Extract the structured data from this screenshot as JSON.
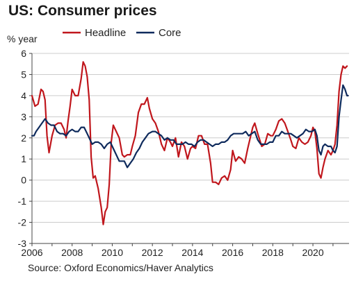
{
  "chart_data": {
    "type": "line",
    "title": "US: Consumer prices",
    "ylabel": "% year",
    "source": "Source: Oxford Economics/Haver Analytics",
    "xlim": [
      2006,
      2021.8
    ],
    "ylim": [
      -3,
      6
    ],
    "y_ticks": [
      -3,
      -2,
      -1,
      0,
      1,
      2,
      3,
      4,
      5,
      6
    ],
    "x_ticks": [
      2006,
      2008,
      2010,
      2012,
      2014,
      2016,
      2018,
      2020
    ],
    "grid": "horizontal",
    "legend_position": "top",
    "series": [
      {
        "name": "Headline",
        "color": "#c0161c",
        "points": [
          [
            2006.0,
            4.0
          ],
          [
            2006.15,
            3.5
          ],
          [
            2006.3,
            3.6
          ],
          [
            2006.45,
            4.3
          ],
          [
            2006.55,
            4.2
          ],
          [
            2006.65,
            3.8
          ],
          [
            2006.75,
            2.1
          ],
          [
            2006.85,
            1.3
          ],
          [
            2007.0,
            2.1
          ],
          [
            2007.15,
            2.6
          ],
          [
            2007.3,
            2.7
          ],
          [
            2007.45,
            2.7
          ],
          [
            2007.6,
            2.4
          ],
          [
            2007.7,
            2.0
          ],
          [
            2007.8,
            2.8
          ],
          [
            2007.9,
            3.5
          ],
          [
            2008.0,
            4.3
          ],
          [
            2008.15,
            4.0
          ],
          [
            2008.3,
            4.0
          ],
          [
            2008.45,
            4.8
          ],
          [
            2008.55,
            5.6
          ],
          [
            2008.65,
            5.4
          ],
          [
            2008.75,
            4.9
          ],
          [
            2008.85,
            3.8
          ],
          [
            2008.95,
            1.1
          ],
          [
            2009.05,
            0.1
          ],
          [
            2009.15,
            0.2
          ],
          [
            2009.3,
            -0.4
          ],
          [
            2009.45,
            -1.3
          ],
          [
            2009.55,
            -2.1
          ],
          [
            2009.65,
            -1.5
          ],
          [
            2009.75,
            -1.3
          ],
          [
            2009.85,
            -0.2
          ],
          [
            2009.95,
            1.8
          ],
          [
            2010.05,
            2.6
          ],
          [
            2010.2,
            2.3
          ],
          [
            2010.35,
            2.0
          ],
          [
            2010.5,
            1.2
          ],
          [
            2010.6,
            1.1
          ],
          [
            2010.75,
            1.2
          ],
          [
            2010.9,
            1.2
          ],
          [
            2011.0,
            1.6
          ],
          [
            2011.15,
            2.1
          ],
          [
            2011.3,
            3.2
          ],
          [
            2011.45,
            3.6
          ],
          [
            2011.6,
            3.6
          ],
          [
            2011.75,
            3.9
          ],
          [
            2011.85,
            3.4
          ],
          [
            2012.0,
            2.9
          ],
          [
            2012.15,
            2.7
          ],
          [
            2012.3,
            2.3
          ],
          [
            2012.45,
            1.7
          ],
          [
            2012.6,
            1.4
          ],
          [
            2012.75,
            2.0
          ],
          [
            2012.9,
            1.8
          ],
          [
            2013.0,
            1.6
          ],
          [
            2013.15,
            2.0
          ],
          [
            2013.3,
            1.1
          ],
          [
            2013.45,
            1.8
          ],
          [
            2013.6,
            1.6
          ],
          [
            2013.75,
            1.0
          ],
          [
            2013.9,
            1.5
          ],
          [
            2014.0,
            1.6
          ],
          [
            2014.15,
            1.5
          ],
          [
            2014.3,
            2.1
          ],
          [
            2014.45,
            2.1
          ],
          [
            2014.6,
            1.7
          ],
          [
            2014.75,
            1.7
          ],
          [
            2014.9,
            0.8
          ],
          [
            2015.0,
            -0.1
          ],
          [
            2015.15,
            -0.1
          ],
          [
            2015.3,
            -0.2
          ],
          [
            2015.45,
            0.1
          ],
          [
            2015.6,
            0.2
          ],
          [
            2015.75,
            0.0
          ],
          [
            2015.9,
            0.5
          ],
          [
            2016.0,
            1.4
          ],
          [
            2016.15,
            0.9
          ],
          [
            2016.3,
            1.1
          ],
          [
            2016.45,
            1.0
          ],
          [
            2016.6,
            0.8
          ],
          [
            2016.75,
            1.5
          ],
          [
            2016.9,
            2.1
          ],
          [
            2017.0,
            2.5
          ],
          [
            2017.1,
            2.7
          ],
          [
            2017.25,
            2.2
          ],
          [
            2017.45,
            1.6
          ],
          [
            2017.6,
            1.7
          ],
          [
            2017.75,
            2.2
          ],
          [
            2017.9,
            2.1
          ],
          [
            2018.0,
            2.1
          ],
          [
            2018.15,
            2.4
          ],
          [
            2018.3,
            2.8
          ],
          [
            2018.45,
            2.9
          ],
          [
            2018.6,
            2.7
          ],
          [
            2018.75,
            2.3
          ],
          [
            2018.9,
            1.9
          ],
          [
            2019.0,
            1.6
          ],
          [
            2019.15,
            1.5
          ],
          [
            2019.3,
            2.0
          ],
          [
            2019.45,
            1.8
          ],
          [
            2019.6,
            1.7
          ],
          [
            2019.75,
            1.8
          ],
          [
            2019.9,
            2.1
          ],
          [
            2020.0,
            2.5
          ],
          [
            2020.1,
            2.3
          ],
          [
            2020.2,
            1.5
          ],
          [
            2020.3,
            0.3
          ],
          [
            2020.4,
            0.1
          ],
          [
            2020.5,
            0.6
          ],
          [
            2020.6,
            1.0
          ],
          [
            2020.75,
            1.4
          ],
          [
            2020.9,
            1.2
          ],
          [
            2021.0,
            1.4
          ],
          [
            2021.1,
            1.7
          ],
          [
            2021.2,
            2.6
          ],
          [
            2021.3,
            4.2
          ],
          [
            2021.4,
            5.0
          ],
          [
            2021.5,
            5.4
          ],
          [
            2021.6,
            5.3
          ],
          [
            2021.7,
            5.4
          ]
        ]
      },
      {
        "name": "Core",
        "color": "#0e2a5c",
        "points": [
          [
            2006.0,
            2.1
          ],
          [
            2006.1,
            2.1
          ],
          [
            2006.2,
            2.3
          ],
          [
            2006.35,
            2.5
          ],
          [
            2006.5,
            2.7
          ],
          [
            2006.65,
            2.9
          ],
          [
            2006.8,
            2.7
          ],
          [
            2006.95,
            2.6
          ],
          [
            2007.1,
            2.6
          ],
          [
            2007.25,
            2.3
          ],
          [
            2007.4,
            2.2
          ],
          [
            2007.55,
            2.2
          ],
          [
            2007.7,
            2.1
          ],
          [
            2007.85,
            2.3
          ],
          [
            2008.0,
            2.4
          ],
          [
            2008.15,
            2.3
          ],
          [
            2008.3,
            2.3
          ],
          [
            2008.45,
            2.5
          ],
          [
            2008.6,
            2.5
          ],
          [
            2008.75,
            2.2
          ],
          [
            2008.9,
            1.9
          ],
          [
            2009.0,
            1.7
          ],
          [
            2009.15,
            1.8
          ],
          [
            2009.3,
            1.8
          ],
          [
            2009.45,
            1.7
          ],
          [
            2009.6,
            1.5
          ],
          [
            2009.75,
            1.7
          ],
          [
            2009.9,
            1.8
          ],
          [
            2010.05,
            1.5
          ],
          [
            2010.2,
            1.2
          ],
          [
            2010.35,
            0.9
          ],
          [
            2010.5,
            0.9
          ],
          [
            2010.6,
            0.9
          ],
          [
            2010.75,
            0.6
          ],
          [
            2010.9,
            0.8
          ],
          [
            2011.05,
            1.0
          ],
          [
            2011.2,
            1.3
          ],
          [
            2011.35,
            1.5
          ],
          [
            2011.5,
            1.8
          ],
          [
            2011.65,
            2.0
          ],
          [
            2011.8,
            2.2
          ],
          [
            2012.0,
            2.3
          ],
          [
            2012.15,
            2.3
          ],
          [
            2012.3,
            2.2
          ],
          [
            2012.45,
            2.1
          ],
          [
            2012.6,
            1.9
          ],
          [
            2012.75,
            2.0
          ],
          [
            2012.9,
            1.9
          ],
          [
            2013.05,
            1.9
          ],
          [
            2013.2,
            1.7
          ],
          [
            2013.35,
            1.7
          ],
          [
            2013.5,
            1.7
          ],
          [
            2013.65,
            1.8
          ],
          [
            2013.8,
            1.7
          ],
          [
            2013.95,
            1.7
          ],
          [
            2014.1,
            1.6
          ],
          [
            2014.25,
            1.8
          ],
          [
            2014.4,
            1.9
          ],
          [
            2014.55,
            1.9
          ],
          [
            2014.7,
            1.8
          ],
          [
            2014.85,
            1.7
          ],
          [
            2015.0,
            1.6
          ],
          [
            2015.15,
            1.7
          ],
          [
            2015.3,
            1.7
          ],
          [
            2015.45,
            1.8
          ],
          [
            2015.6,
            1.8
          ],
          [
            2015.75,
            1.9
          ],
          [
            2015.9,
            2.1
          ],
          [
            2016.05,
            2.2
          ],
          [
            2016.2,
            2.2
          ],
          [
            2016.35,
            2.2
          ],
          [
            2016.5,
            2.2
          ],
          [
            2016.65,
            2.3
          ],
          [
            2016.8,
            2.1
          ],
          [
            2016.95,
            2.2
          ],
          [
            2017.1,
            2.3
          ],
          [
            2017.25,
            1.9
          ],
          [
            2017.4,
            1.7
          ],
          [
            2017.55,
            1.7
          ],
          [
            2017.7,
            1.7
          ],
          [
            2017.85,
            1.8
          ],
          [
            2018.0,
            1.8
          ],
          [
            2018.15,
            2.1
          ],
          [
            2018.3,
            2.1
          ],
          [
            2018.45,
            2.3
          ],
          [
            2018.6,
            2.2
          ],
          [
            2018.75,
            2.2
          ],
          [
            2018.9,
            2.2
          ],
          [
            2019.05,
            2.1
          ],
          [
            2019.2,
            2.0
          ],
          [
            2019.35,
            2.1
          ],
          [
            2019.5,
            2.2
          ],
          [
            2019.65,
            2.4
          ],
          [
            2019.8,
            2.3
          ],
          [
            2019.95,
            2.3
          ],
          [
            2020.1,
            2.4
          ],
          [
            2020.2,
            2.1
          ],
          [
            2020.3,
            1.4
          ],
          [
            2020.4,
            1.2
          ],
          [
            2020.5,
            1.6
          ],
          [
            2020.6,
            1.7
          ],
          [
            2020.75,
            1.6
          ],
          [
            2020.9,
            1.6
          ],
          [
            2021.0,
            1.4
          ],
          [
            2021.1,
            1.3
          ],
          [
            2021.2,
            1.6
          ],
          [
            2021.3,
            3.0
          ],
          [
            2021.4,
            3.8
          ],
          [
            2021.5,
            4.5
          ],
          [
            2021.6,
            4.3
          ],
          [
            2021.7,
            4.0
          ],
          [
            2021.75,
            4.0
          ]
        ]
      }
    ]
  }
}
